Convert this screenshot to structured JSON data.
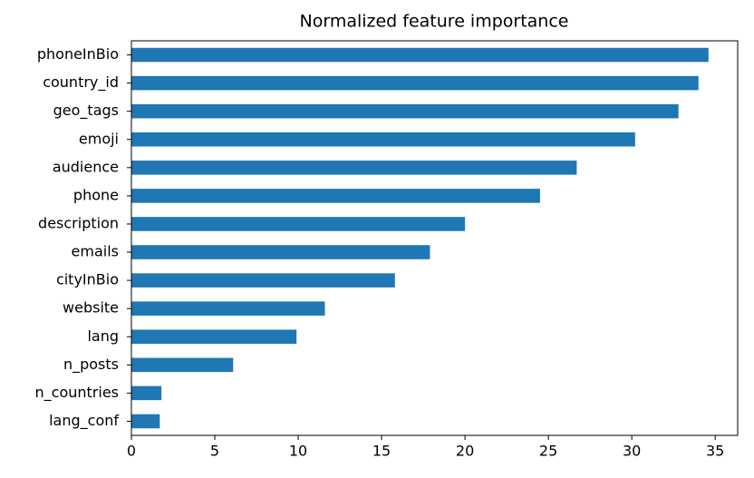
{
  "chart_data": {
    "type": "barh",
    "title": "Normalized feature importance",
    "categories": [
      "phoneInBio",
      "country_id",
      "geo_tags",
      "emoji",
      "audience",
      "phone",
      "description",
      "emails",
      "cityInBio",
      "website",
      "lang",
      "n_posts",
      "n_countries",
      "lang_conf"
    ],
    "values": [
      34.6,
      34.0,
      32.8,
      30.2,
      26.7,
      24.5,
      20.0,
      17.9,
      15.8,
      11.6,
      9.9,
      6.1,
      1.8,
      1.7
    ],
    "color": "#1f77b4",
    "xlim": [
      0,
      36.35
    ],
    "xticks": [
      0,
      5,
      10,
      15,
      20,
      25,
      30,
      35
    ],
    "grid": false
  }
}
